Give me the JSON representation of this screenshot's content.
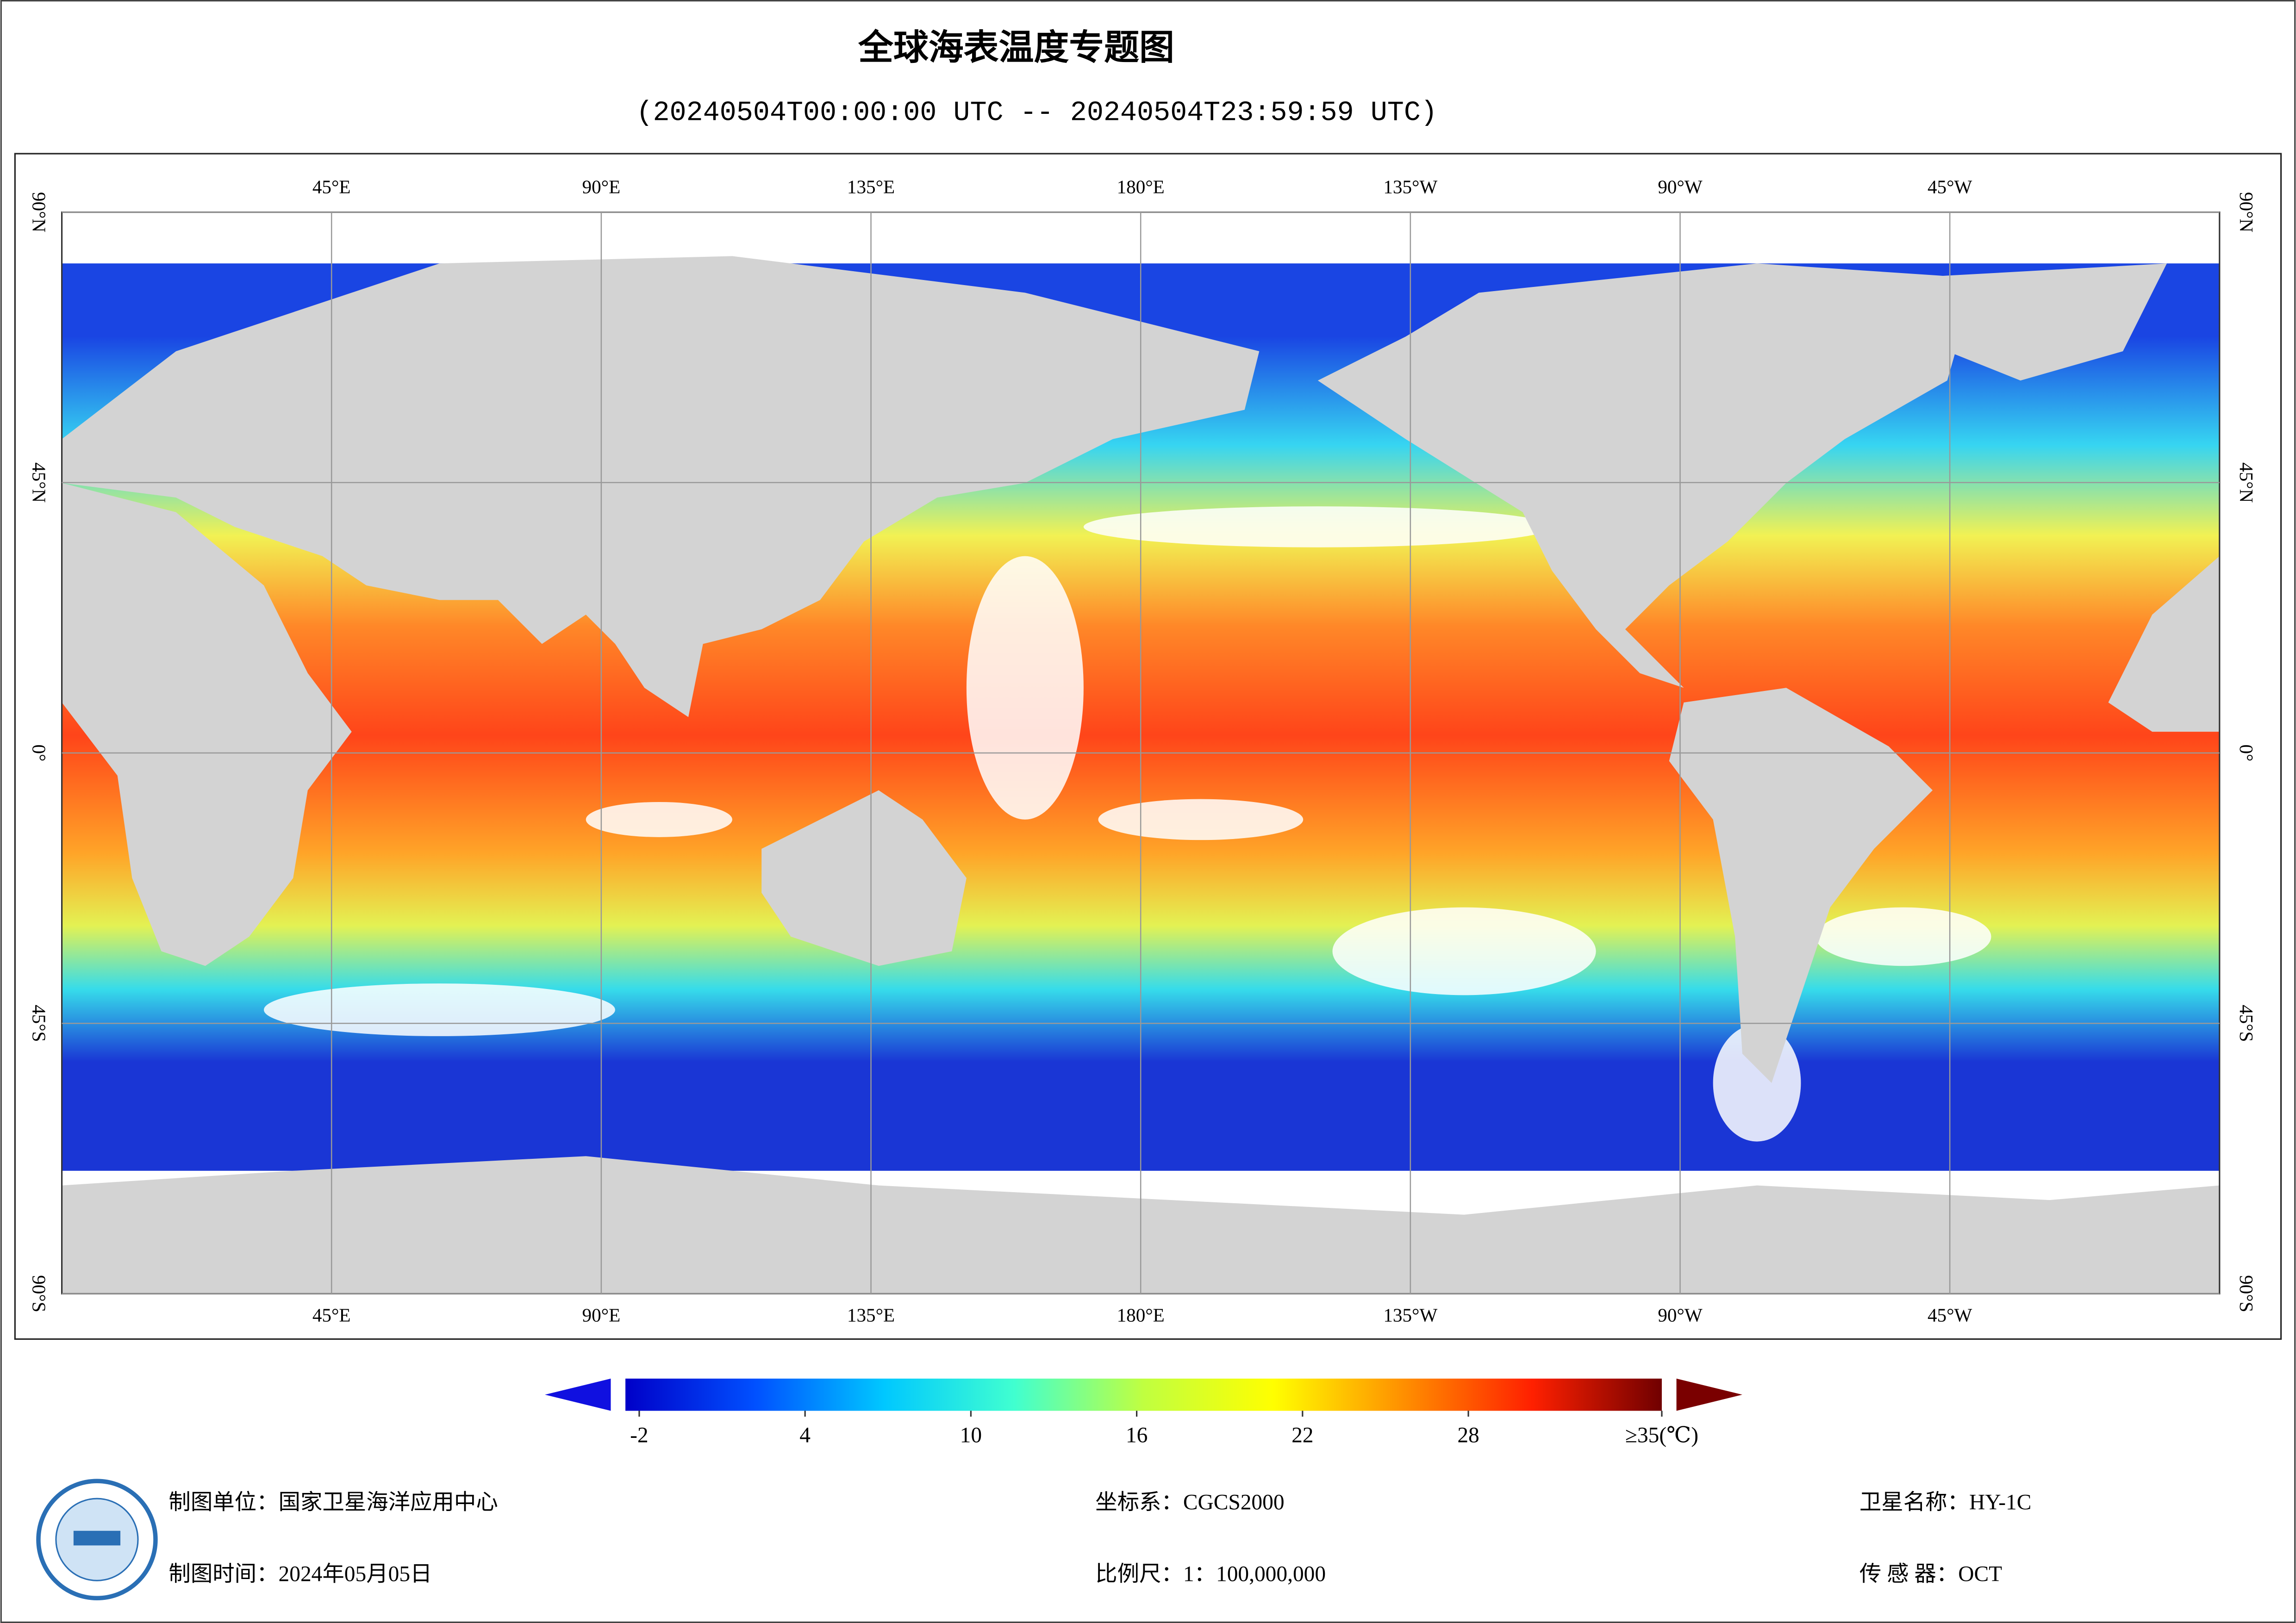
{
  "header": {
    "title": "全球海表温度专题图",
    "subtitle": "(20240504T00:00:00 UTC -- 20240504T23:59:59 UTC)"
  },
  "map": {
    "lon_ticks": [
      {
        "value": 45,
        "label": "45°E"
      },
      {
        "value": 90,
        "label": "90°E"
      },
      {
        "value": 135,
        "label": "135°E"
      },
      {
        "value": 180,
        "label": "180°E"
      },
      {
        "value": 225,
        "label": "135°W"
      },
      {
        "value": 270,
        "label": "90°W"
      },
      {
        "value": 315,
        "label": "45°W"
      }
    ],
    "lat_ticks": [
      {
        "value": 90,
        "label": "90°N"
      },
      {
        "value": 45,
        "label": "45°N"
      },
      {
        "value": 0,
        "label": "0°"
      },
      {
        "value": -45,
        "label": "45°S"
      },
      {
        "value": -90,
        "label": "90°S"
      }
    ]
  },
  "colorbar": {
    "range": [
      -2.5,
      35
    ],
    "colors": [
      "#0000c8",
      "#0050ff",
      "#00c8ff",
      "#40ffd0",
      "#c0ff40",
      "#ffff00",
      "#ff9000",
      "#ff2000",
      "#700000"
    ],
    "ticks": [
      -2,
      4,
      10,
      16,
      22,
      28,
      {
        "value": 35,
        "label": "≥35(℃)"
      }
    ]
  },
  "footer": {
    "unit": "制图单位：国家卫星海洋应用中心",
    "date": "制图时间：2024年05月05日",
    "crs": "坐标系：CGCS2000",
    "scale": "比例尺：1：100,000,000",
    "satellite": "卫星名称：HY-1C",
    "sensor": "传 感 器：OCT"
  }
}
